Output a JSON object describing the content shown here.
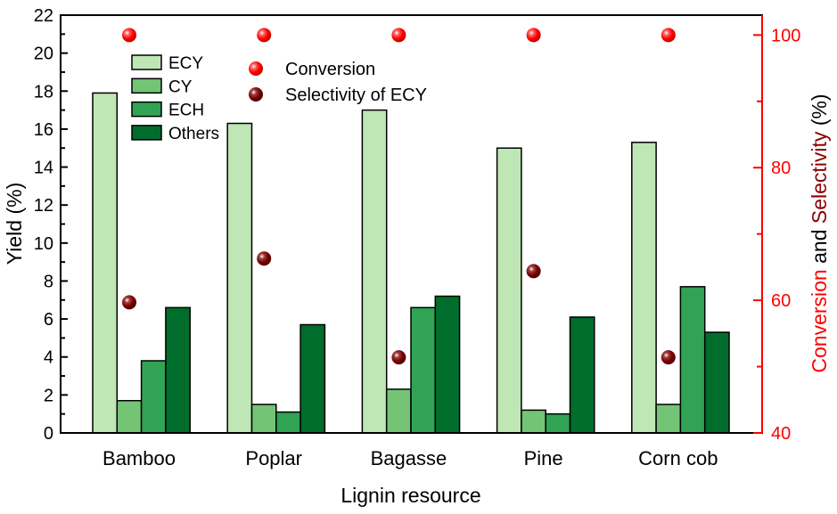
{
  "chart_data": {
    "type": "bar",
    "xlabel": "Lignin resource",
    "ylabel": "Yield (%)",
    "ylim": [
      0,
      22
    ],
    "yticks": [
      0,
      2,
      4,
      6,
      8,
      10,
      12,
      14,
      16,
      18,
      20,
      22
    ],
    "categories": [
      "Bamboo",
      "Poplar",
      "Bagasse",
      "Pine",
      "Corn cob"
    ],
    "series": [
      {
        "name": "ECY",
        "color": "#bfe6b5",
        "values": [
          17.9,
          16.3,
          17.0,
          15.0,
          15.3
        ]
      },
      {
        "name": "CY",
        "color": "#74c476",
        "values": [
          1.7,
          1.5,
          2.3,
          1.2,
          1.5
        ]
      },
      {
        "name": "ECH",
        "color": "#31a354",
        "values": [
          3.8,
          1.1,
          6.6,
          1.0,
          7.7
        ]
      },
      {
        "name": "Others",
        "color": "#006d2c",
        "values": [
          6.6,
          5.7,
          7.2,
          6.1,
          5.3
        ]
      }
    ],
    "right_axis": {
      "label_parts": [
        {
          "text": "Conversion",
          "color": "#ff0000"
        },
        {
          "text": " and ",
          "color": "#000000"
        },
        {
          "text": "Selectivity",
          "color": "#8b0000"
        },
        {
          "text": " (%)",
          "color": "#000000"
        }
      ],
      "ylim": [
        40,
        103
      ],
      "yticks": [
        40,
        60,
        80,
        100
      ],
      "color": "#ff0000"
    },
    "scatter_series": [
      {
        "name": "Conversion",
        "color": "#ff0000",
        "values": [
          100,
          100,
          100,
          100,
          100
        ]
      },
      {
        "name": "Selectivity of ECY",
        "color": "#8b0000",
        "values": [
          59.7,
          66.3,
          51.4,
          64.4,
          51.4
        ]
      }
    ],
    "legend": {
      "bars": "top-left",
      "points": "top-center"
    },
    "grid": false
  }
}
